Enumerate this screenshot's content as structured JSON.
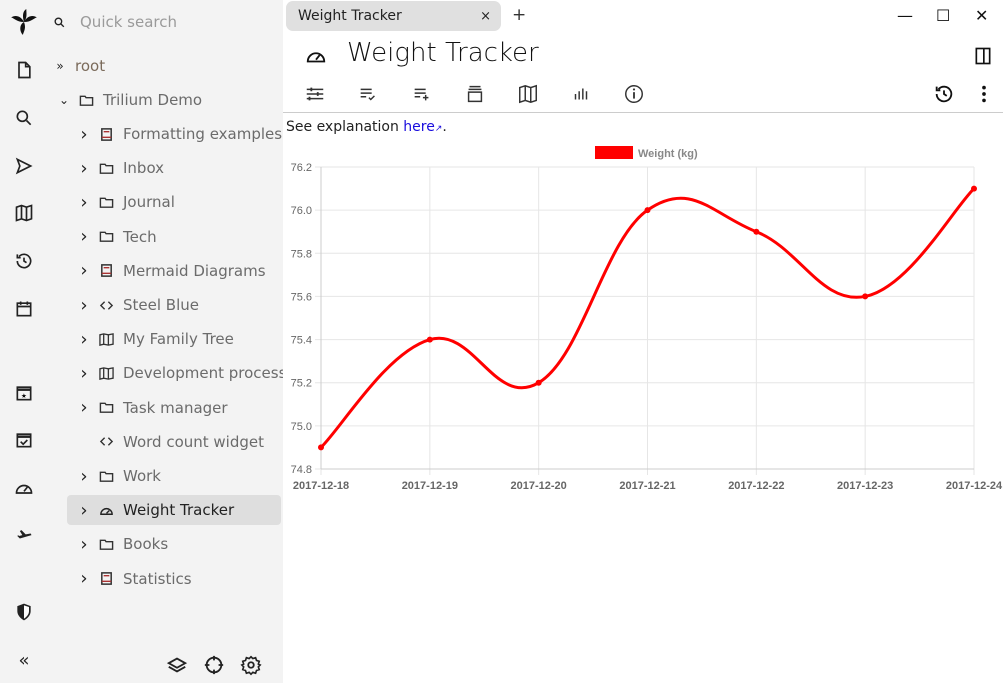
{
  "search": {
    "placeholder": "Quick search"
  },
  "rail": {
    "icons": [
      "trilium-logo",
      "new-note-icon",
      "search-icon",
      "send-icon",
      "map-icon",
      "history-icon",
      "calendar-icon",
      "calendar-star-icon",
      "task-icon",
      "gauge-icon",
      "airplane-icon",
      "shield-icon",
      "collapse-icon"
    ]
  },
  "tree": {
    "root": "root",
    "demo": "Trilium Demo",
    "items": [
      {
        "label": "Formatting examples",
        "icon": "book",
        "chevron": true
      },
      {
        "label": "Inbox",
        "icon": "folder",
        "chevron": true
      },
      {
        "label": "Journal",
        "icon": "folder",
        "chevron": true
      },
      {
        "label": "Tech",
        "icon": "folder",
        "chevron": true
      },
      {
        "label": "Mermaid Diagrams",
        "icon": "book",
        "chevron": true
      },
      {
        "label": "Steel Blue",
        "icon": "code",
        "chevron": true
      },
      {
        "label": "My Family Tree",
        "icon": "map",
        "chevron": true
      },
      {
        "label": "Development process",
        "icon": "map",
        "chevron": true
      },
      {
        "label": "Task manager",
        "icon": "folder",
        "chevron": true
      },
      {
        "label": "Word count widget",
        "icon": "code",
        "chevron": false
      },
      {
        "label": "Work",
        "icon": "folder",
        "chevron": true
      },
      {
        "label": "Weight Tracker",
        "icon": "gauge",
        "chevron": true,
        "selected": true
      },
      {
        "label": "Books",
        "icon": "folder",
        "chevron": true
      },
      {
        "label": "Statistics",
        "icon": "book",
        "chevron": true
      }
    ]
  },
  "tab": {
    "label": "Weight Tracker",
    "close": "×",
    "new": "+"
  },
  "window": {
    "minimize": "—",
    "maximize": "☐",
    "close": "✕"
  },
  "note": {
    "title": "Weight Tracker",
    "explanation": "See explanation ",
    "link": "here",
    "link_suffix": "↗",
    "period": "."
  },
  "colors": {
    "line": "#ff0000",
    "sidebar": "#f3f3f3",
    "selected": "#dedede",
    "link": "#1a0dde"
  },
  "chart_data": {
    "type": "line",
    "categories": [
      "2017-12-18",
      "2017-12-19",
      "2017-12-20",
      "2017-12-21",
      "2017-12-22",
      "2017-12-23",
      "2017-12-24"
    ],
    "series": [
      {
        "name": "Weight (kg)",
        "values": [
          74.9,
          75.4,
          75.2,
          76.0,
          75.9,
          75.6,
          76.1
        ],
        "color": "#ff0000"
      }
    ],
    "ylim": [
      74.8,
      76.2
    ],
    "yticks": [
      "74.8",
      "75.0",
      "75.2",
      "75.4",
      "75.6",
      "75.8",
      "76.0",
      "76.2"
    ],
    "grid": true,
    "legend": "top"
  }
}
